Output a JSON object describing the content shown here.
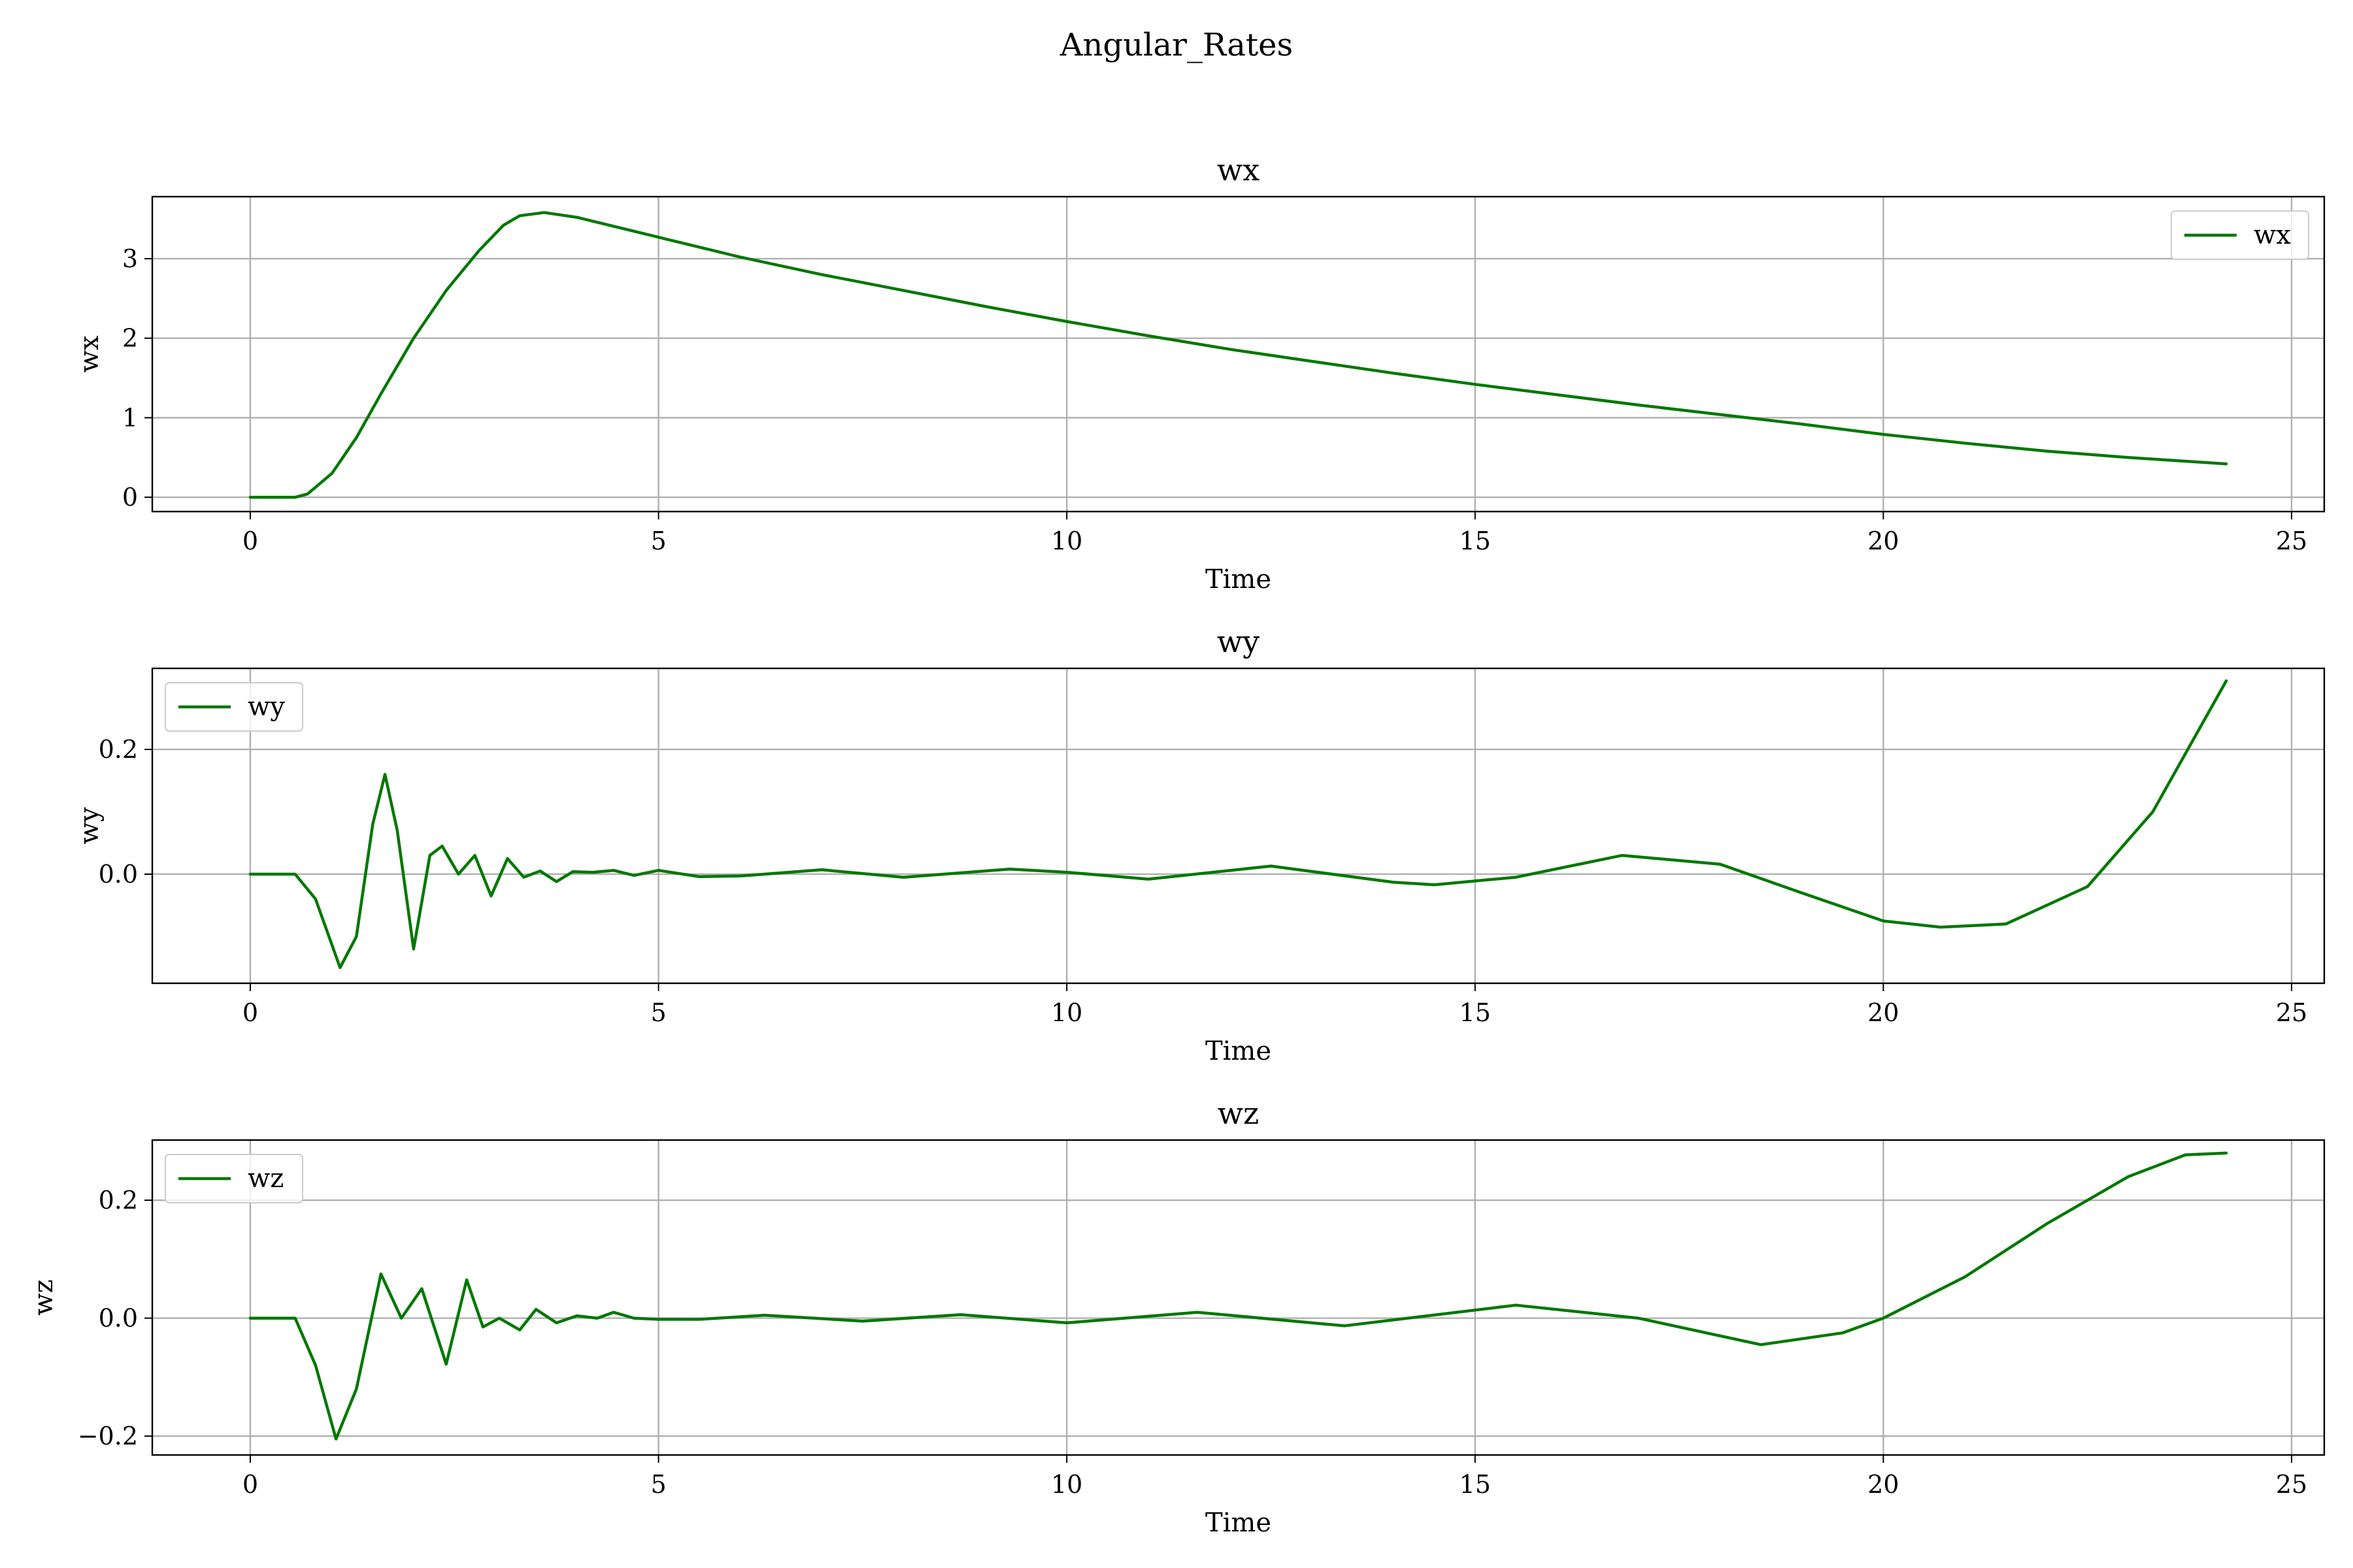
{
  "figure_title": "Angular_Rates",
  "colors": {
    "series": "#007800",
    "grid": "#b0b0b0"
  },
  "chart_data": [
    {
      "type": "line",
      "title": "wx",
      "xlabel": "Time",
      "ylabel": "wx",
      "xlim": [
        -1.2,
        25.4
      ],
      "ylim": [
        -0.18,
        3.78
      ],
      "xticks": [
        0,
        5,
        10,
        15,
        20,
        25
      ],
      "xtick_labels": [
        "0",
        "5",
        "10",
        "15",
        "20",
        "25"
      ],
      "yticks": [
        0,
        1,
        2,
        3
      ],
      "ytick_labels": [
        "0",
        "1",
        "2",
        "3"
      ],
      "grid": true,
      "legend": "top-right",
      "series": [
        {
          "name": "wx",
          "color": "#007800",
          "x": [
            0,
            0.55,
            0.7,
            1.0,
            1.3,
            1.6,
            2.0,
            2.4,
            2.8,
            3.1,
            3.3,
            3.6,
            4.0,
            5.0,
            6.0,
            7.0,
            8.0,
            9.0,
            10.0,
            11.0,
            12.0,
            13.0,
            14.0,
            15.0,
            16.0,
            17.0,
            18.0,
            19.0,
            20.0,
            21.0,
            22.0,
            23.0,
            24.2
          ],
          "y": [
            0,
            0,
            0.04,
            0.3,
            0.75,
            1.3,
            2.0,
            2.6,
            3.1,
            3.42,
            3.54,
            3.58,
            3.52,
            3.27,
            3.02,
            2.8,
            2.6,
            2.4,
            2.21,
            2.03,
            1.86,
            1.71,
            1.56,
            1.42,
            1.29,
            1.16,
            1.04,
            0.92,
            0.79,
            0.68,
            0.58,
            0.5,
            0.42
          ]
        }
      ]
    },
    {
      "type": "line",
      "title": "wy",
      "xlabel": "Time",
      "ylabel": "wy",
      "xlim": [
        -1.2,
        25.4
      ],
      "ylim": [
        -0.175,
        0.33
      ],
      "xticks": [
        0,
        5,
        10,
        15,
        20,
        25
      ],
      "xtick_labels": [
        "0",
        "5",
        "10",
        "15",
        "20",
        "25"
      ],
      "yticks": [
        0.0,
        0.2
      ],
      "ytick_labels": [
        "0.0",
        "0.2"
      ],
      "grid": true,
      "legend": "top-left",
      "series": [
        {
          "name": "wy",
          "color": "#007800",
          "x": [
            0,
            0.55,
            0.8,
            1.1,
            1.3,
            1.5,
            1.65,
            1.8,
            2.0,
            2.2,
            2.35,
            2.55,
            2.75,
            2.95,
            3.15,
            3.35,
            3.55,
            3.75,
            3.95,
            4.2,
            4.45,
            4.7,
            5.0,
            5.5,
            6.0,
            7.0,
            8.0,
            9.3,
            10.0,
            11.0,
            12.5,
            14.0,
            14.5,
            15.5,
            16.8,
            18.0,
            19.0,
            20.0,
            20.7,
            21.5,
            22.5,
            23.3,
            24.2
          ],
          "y": [
            0,
            0,
            -0.04,
            -0.15,
            -0.1,
            0.08,
            0.16,
            0.07,
            -0.12,
            0.03,
            0.045,
            0.0,
            0.03,
            -0.035,
            0.025,
            -0.005,
            0.005,
            -0.012,
            0.004,
            0.003,
            0.006,
            -0.002,
            0.006,
            -0.004,
            -0.003,
            0.007,
            -0.005,
            0.008,
            0.003,
            -0.008,
            0.013,
            -0.013,
            -0.017,
            -0.005,
            0.03,
            0.016,
            -0.03,
            -0.075,
            -0.085,
            -0.08,
            -0.02,
            0.1,
            0.31
          ]
        }
      ]
    },
    {
      "type": "line",
      "title": "wz",
      "xlabel": "Time",
      "ylabel": "wz",
      "xlim": [
        -1.2,
        25.4
      ],
      "ylim": [
        -0.232,
        0.302
      ],
      "xticks": [
        0,
        5,
        10,
        15,
        20,
        25
      ],
      "xtick_labels": [
        "0",
        "5",
        "10",
        "15",
        "20",
        "25"
      ],
      "yticks": [
        -0.2,
        0.0,
        0.2
      ],
      "ytick_labels": [
        "−0.2",
        "0.0",
        "0.2"
      ],
      "grid": true,
      "legend": "top-left",
      "series": [
        {
          "name": "wz",
          "color": "#007800",
          "x": [
            0,
            0.55,
            0.8,
            1.05,
            1.3,
            1.6,
            1.85,
            2.1,
            2.4,
            2.65,
            2.85,
            3.05,
            3.3,
            3.5,
            3.75,
            4.0,
            4.25,
            4.45,
            4.7,
            5.0,
            5.5,
            6.3,
            7.5,
            8.7,
            10.0,
            11.6,
            13.4,
            15.5,
            17.0,
            18.5,
            19.5,
            20.0,
            21.0,
            22.0,
            23.0,
            23.7,
            24.2
          ],
          "y": [
            0,
            0,
            -0.08,
            -0.205,
            -0.12,
            0.075,
            0.0,
            0.05,
            -0.078,
            0.065,
            -0.015,
            0.0,
            -0.02,
            0.015,
            -0.008,
            0.004,
            0.0,
            0.01,
            0.0,
            -0.002,
            -0.002,
            0.005,
            -0.005,
            0.006,
            -0.008,
            0.01,
            -0.013,
            0.022,
            0.0,
            -0.045,
            -0.025,
            0.0,
            0.07,
            0.16,
            0.24,
            0.277,
            0.28
          ]
        }
      ]
    }
  ]
}
